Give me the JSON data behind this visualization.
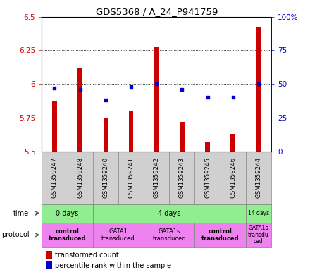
{
  "title": "GDS5368 / A_24_P941759",
  "samples": [
    "GSM1359247",
    "GSM1359248",
    "GSM1359240",
    "GSM1359241",
    "GSM1359242",
    "GSM1359243",
    "GSM1359245",
    "GSM1359246",
    "GSM1359244"
  ],
  "red_values": [
    5.87,
    6.12,
    5.75,
    5.8,
    6.28,
    5.72,
    5.57,
    5.63,
    6.42
  ],
  "blue_values": [
    47,
    46,
    38,
    48,
    50,
    46,
    40,
    40,
    50
  ],
  "ylim_left": [
    5.5,
    6.5
  ],
  "ylim_right": [
    0,
    100
  ],
  "yticks_left": [
    5.5,
    5.75,
    6.0,
    6.25,
    6.5
  ],
  "ytick_labels_left": [
    "5.5",
    "5.75",
    "6",
    "6.25",
    "6.5"
  ],
  "yticks_right": [
    0,
    25,
    50,
    75,
    100
  ],
  "ytick_labels_right": [
    "0",
    "25",
    "50",
    "75",
    "100%"
  ],
  "hlines": [
    5.75,
    6.0,
    6.25
  ],
  "bar_bottom": 5.5,
  "bar_color": "#cc0000",
  "dot_color": "#0000cc",
  "bar_width": 0.18,
  "time_groups": [
    {
      "label": "0 days",
      "start": 0,
      "end": 2,
      "color": "#90ee90"
    },
    {
      "label": "4 days",
      "start": 2,
      "end": 8,
      "color": "#90ee90"
    },
    {
      "label": "14 days",
      "start": 8,
      "end": 9,
      "color": "#90ee90"
    }
  ],
  "protocol_groups": [
    {
      "label": "control\ntransduced",
      "start": 0,
      "end": 2,
      "color": "#ee82ee",
      "bold": true
    },
    {
      "label": "GATA1\ntransduced",
      "start": 2,
      "end": 4,
      "color": "#ee82ee",
      "bold": false
    },
    {
      "label": "GATA1s\ntransduced",
      "start": 4,
      "end": 6,
      "color": "#ee82ee",
      "bold": false
    },
    {
      "label": "control\ntransduced",
      "start": 6,
      "end": 8,
      "color": "#ee82ee",
      "bold": true
    },
    {
      "label": "GATA1s\ntransdu\nced",
      "start": 8,
      "end": 9,
      "color": "#ee82ee",
      "bold": false
    }
  ],
  "sample_bg": "#d0d0d0",
  "plot_bg": "#ffffff",
  "grid_color": "#000000",
  "left_axis_color": "#cc0000",
  "right_axis_color": "#0000cc",
  "label_area_color": "#ffffff"
}
